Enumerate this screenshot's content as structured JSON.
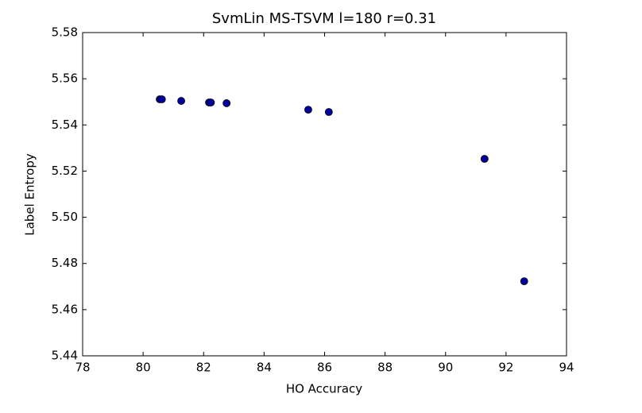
{
  "chart_data": {
    "type": "scatter",
    "title": "SvmLin MS-TSVM l=180 r=0.31",
    "x_label": "HO Accuracy",
    "y_label": "Label Entropy",
    "series": [
      {
        "color": "#0000a0",
        "x": [
          80.55,
          80.62,
          81.26,
          82.18,
          82.24,
          82.76,
          85.46,
          86.14,
          91.29,
          92.6
        ],
        "values": [
          5.5511,
          5.5511,
          5.5504,
          5.5497,
          5.5497,
          5.5494,
          5.5466,
          5.5456,
          5.5253,
          5.4723
        ]
      }
    ],
    "xlim": [
      78,
      94
    ],
    "xticks": [
      78,
      80,
      82,
      84,
      86,
      88,
      90,
      92,
      94
    ],
    "ylim": [
      5.44,
      5.58
    ],
    "yticks": [
      5.44,
      5.46,
      5.48,
      {
        "value": 5.5,
        "label": "5.50"
      },
      5.52,
      5.54,
      5.56,
      5.58
    ]
  }
}
